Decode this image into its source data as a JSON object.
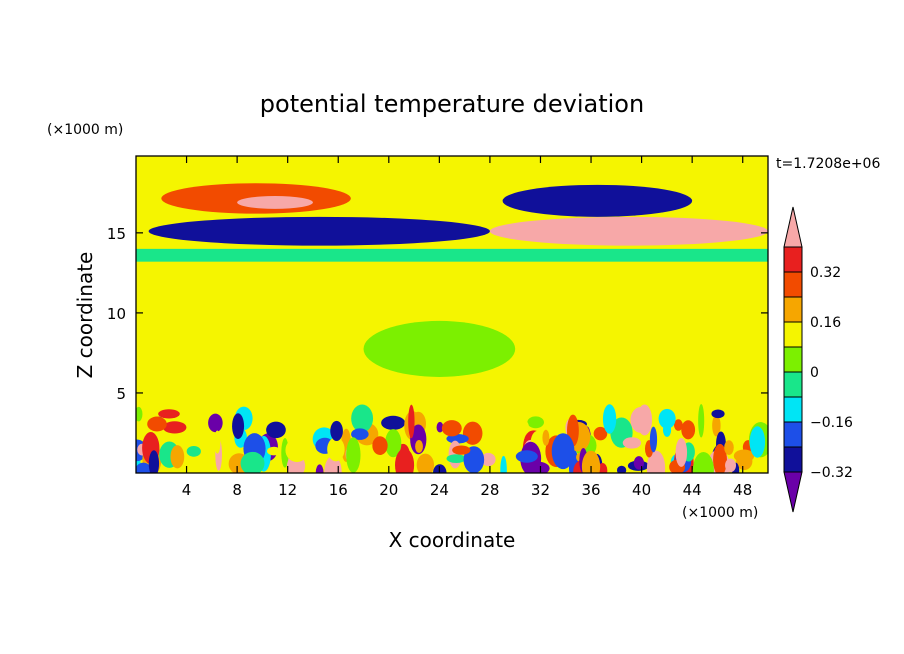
{
  "chart_data": {
    "type": "heatmap",
    "title": "potential temperature deviation",
    "xlabel": "X coordinate",
    "ylabel": "Z coordinate",
    "x_unit": "(×1000 m)",
    "y_unit": "(×1000 m)",
    "time_label": "t=1.7208e+06",
    "xlim": [
      0,
      50
    ],
    "ylim": [
      0,
      19.8
    ],
    "x_ticks": [
      4,
      8,
      12,
      16,
      20,
      24,
      28,
      32,
      36,
      40,
      44,
      48
    ],
    "y_ticks": [
      5,
      10,
      15
    ],
    "colorbar": {
      "levels": [
        -0.4,
        -0.32,
        -0.24,
        -0.16,
        -0.08,
        0,
        0.08,
        0.16,
        0.24,
        0.32,
        0.4
      ],
      "colors": [
        "#6a00a8",
        "#10109a",
        "#1d4fe8",
        "#00e5f5",
        "#19e68a",
        "#7cf000",
        "#f5f500",
        "#f6a600",
        "#f24b00",
        "#e8201f",
        "#f7a8a8"
      ],
      "labels": [
        {
          "value": -0.32,
          "text": "−0.32"
        },
        {
          "value": -0.16,
          "text": "−0.16"
        },
        {
          "value": 0,
          "text": "0"
        },
        {
          "value": 0.16,
          "text": "0.16"
        },
        {
          "value": 0.32,
          "text": "0.32"
        }
      ]
    },
    "features": [
      {
        "name": "background",
        "x": [
          0,
          50
        ],
        "z": [
          0,
          19.8
        ],
        "value": 0.04
      },
      {
        "name": "mid-troposphere-warm-patch",
        "x": [
          0,
          20
        ],
        "z": [
          5,
          10
        ],
        "value": 0.06
      },
      {
        "name": "mid-troposphere-cool-patch",
        "x": [
          18,
          30
        ],
        "z": [
          6,
          9.5
        ],
        "value": -0.04
      },
      {
        "name": "upper-warm-lens",
        "x": [
          2,
          17
        ],
        "z": [
          16.2,
          18.1
        ],
        "value": 0.2
      },
      {
        "name": "upper-warm-core",
        "x": [
          8,
          14
        ],
        "z": [
          16.5,
          17.3
        ],
        "value": 0.4
      },
      {
        "name": "cold-layer-west",
        "x": [
          1,
          28
        ],
        "z": [
          14.2,
          16.0
        ],
        "value": -0.38
      },
      {
        "name": "warm-layer-east",
        "x": [
          28,
          50
        ],
        "z": [
          14.2,
          16.0
        ],
        "value": 0.4
      },
      {
        "name": "upper-cold-east",
        "x": [
          29,
          44
        ],
        "z": [
          16.0,
          18.0
        ],
        "value": -0.36
      },
      {
        "name": "cool-band",
        "x": [
          0,
          50
        ],
        "z": [
          13.2,
          14.0
        ],
        "value": -0.14
      },
      {
        "name": "boundary-layer-mix",
        "x": [
          0,
          50
        ],
        "z": [
          0,
          3.7
        ],
        "value": 0.0
      }
    ]
  }
}
